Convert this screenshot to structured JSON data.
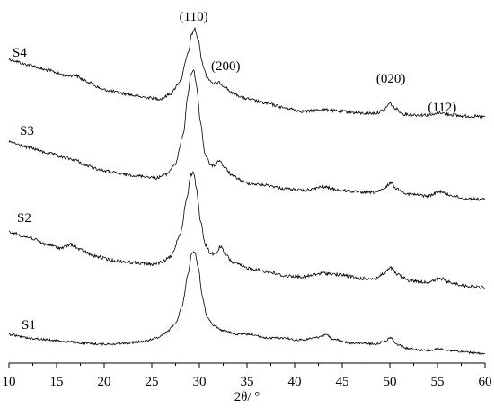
{
  "chart_data": {
    "type": "line",
    "title": "",
    "xlabel": "2θ/ °",
    "ylabel": "",
    "xlim": [
      10,
      60
    ],
    "x_ticks": [
      10,
      15,
      20,
      25,
      30,
      35,
      40,
      45,
      50,
      55,
      60
    ],
    "grid": false,
    "legend": "none",
    "line_color": "#000000",
    "peak_labels": [
      {
        "text": "(110)",
        "x": 29.4
      },
      {
        "text": "(200)",
        "x": 32.1
      },
      {
        "text": "(020)",
        "x": 50.1
      },
      {
        "text": "(112)",
        "x": 55.5
      }
    ],
    "series": [
      {
        "name": "S4",
        "points": [
          [
            10,
            66
          ],
          [
            12,
            72
          ],
          [
            14,
            78
          ],
          [
            16,
            84
          ],
          [
            17,
            84
          ],
          [
            18,
            90
          ],
          [
            20,
            100
          ],
          [
            22,
            104
          ],
          [
            24,
            108
          ],
          [
            26,
            110
          ],
          [
            27,
            104
          ],
          [
            28,
            90
          ],
          [
            28.8,
            60
          ],
          [
            29.2,
            38
          ],
          [
            29.5,
            32
          ],
          [
            29.9,
            45
          ],
          [
            30.3,
            70
          ],
          [
            30.8,
            86
          ],
          [
            31.5,
            93
          ],
          [
            32.1,
            92
          ],
          [
            32.6,
            96
          ],
          [
            33.5,
            104
          ],
          [
            35,
            110
          ],
          [
            37,
            115
          ],
          [
            39,
            120
          ],
          [
            41,
            124
          ],
          [
            43,
            122
          ],
          [
            45,
            124
          ],
          [
            47,
            126
          ],
          [
            48.5,
            126
          ],
          [
            49.3,
            123
          ],
          [
            50,
            115
          ],
          [
            50.6,
            121
          ],
          [
            51.5,
            127
          ],
          [
            53,
            128
          ],
          [
            54.5,
            128
          ],
          [
            55.3,
            125
          ],
          [
            56,
            127
          ],
          [
            57.5,
            129
          ],
          [
            60,
            130
          ]
        ],
        "noise": 1.7
      },
      {
        "name": "S3",
        "points": [
          [
            10,
            158
          ],
          [
            12,
            164
          ],
          [
            14,
            170
          ],
          [
            16,
            176
          ],
          [
            17,
            178
          ],
          [
            18,
            184
          ],
          [
            20,
            190
          ],
          [
            22,
            194
          ],
          [
            24,
            196
          ],
          [
            25.5,
            198
          ],
          [
            26.5,
            194
          ],
          [
            27.5,
            182
          ],
          [
            28.3,
            150
          ],
          [
            28.8,
            105
          ],
          [
            29.1,
            82
          ],
          [
            29.4,
            78
          ],
          [
            29.7,
            95
          ],
          [
            30.1,
            135
          ],
          [
            30.6,
            172
          ],
          [
            31.2,
            184
          ],
          [
            31.6,
            184
          ],
          [
            32.1,
            178
          ],
          [
            32.6,
            186
          ],
          [
            33.5,
            196
          ],
          [
            35,
            204
          ],
          [
            37,
            206
          ],
          [
            39,
            210
          ],
          [
            41,
            212
          ],
          [
            43,
            208
          ],
          [
            45,
            212
          ],
          [
            47,
            214
          ],
          [
            48.5,
            214
          ],
          [
            49.3,
            211
          ],
          [
            50.1,
            203
          ],
          [
            50.7,
            210
          ],
          [
            52,
            216
          ],
          [
            54,
            218
          ],
          [
            55.4,
            213
          ],
          [
            56.2,
            217
          ],
          [
            58,
            221
          ],
          [
            60,
            222
          ]
        ],
        "noise": 1.6
      },
      {
        "name": "S2",
        "points": [
          [
            10,
            258
          ],
          [
            12,
            264
          ],
          [
            14,
            272
          ],
          [
            15.5,
            276
          ],
          [
            16.5,
            272
          ],
          [
            17.5,
            278
          ],
          [
            19,
            285
          ],
          [
            21,
            290
          ],
          [
            23,
            292
          ],
          [
            25,
            294
          ],
          [
            26,
            292
          ],
          [
            27,
            286
          ],
          [
            28,
            260
          ],
          [
            28.7,
            220
          ],
          [
            29.1,
            194
          ],
          [
            29.4,
            192
          ],
          [
            29.7,
            210
          ],
          [
            30.1,
            245
          ],
          [
            30.6,
            272
          ],
          [
            31.2,
            282
          ],
          [
            31.7,
            283
          ],
          [
            32.2,
            274
          ],
          [
            32.8,
            284
          ],
          [
            33.5,
            292
          ],
          [
            35,
            298
          ],
          [
            37,
            302
          ],
          [
            39,
            307
          ],
          [
            41,
            308
          ],
          [
            43,
            304
          ],
          [
            45,
            306
          ],
          [
            47,
            310
          ],
          [
            48.5,
            310
          ],
          [
            49.3,
            305
          ],
          [
            50.1,
            298
          ],
          [
            50.7,
            305
          ],
          [
            52,
            312
          ],
          [
            54,
            314
          ],
          [
            55.4,
            310
          ],
          [
            56.2,
            314
          ],
          [
            58,
            318
          ],
          [
            60,
            320
          ]
        ],
        "noise": 1.8
      },
      {
        "name": "S1",
        "points": [
          [
            10,
            372
          ],
          [
            12,
            376
          ],
          [
            14,
            378
          ],
          [
            16,
            380
          ],
          [
            18,
            382
          ],
          [
            20,
            383
          ],
          [
            22,
            382
          ],
          [
            24,
            380
          ],
          [
            25.5,
            376
          ],
          [
            26.5,
            370
          ],
          [
            27.5,
            360
          ],
          [
            28.2,
            340
          ],
          [
            28.8,
            305
          ],
          [
            29.2,
            282
          ],
          [
            29.5,
            279
          ],
          [
            29.9,
            298
          ],
          [
            30.3,
            330
          ],
          [
            30.8,
            352
          ],
          [
            31.5,
            362
          ],
          [
            32.5,
            368
          ],
          [
            34,
            372
          ],
          [
            35.5,
            372
          ],
          [
            37,
            376
          ],
          [
            39,
            376
          ],
          [
            40,
            378
          ],
          [
            41,
            378
          ],
          [
            42.5,
            375
          ],
          [
            43.3,
            372
          ],
          [
            44,
            377
          ],
          [
            46,
            382
          ],
          [
            47.5,
            382
          ],
          [
            48.5,
            383
          ],
          [
            49.3,
            380
          ],
          [
            50.1,
            376
          ],
          [
            50.9,
            384
          ],
          [
            52,
            388
          ],
          [
            54,
            390
          ],
          [
            55.3,
            388
          ],
          [
            56.2,
            390
          ],
          [
            58,
            392
          ],
          [
            60,
            394
          ]
        ],
        "noise": 1.2
      }
    ]
  }
}
